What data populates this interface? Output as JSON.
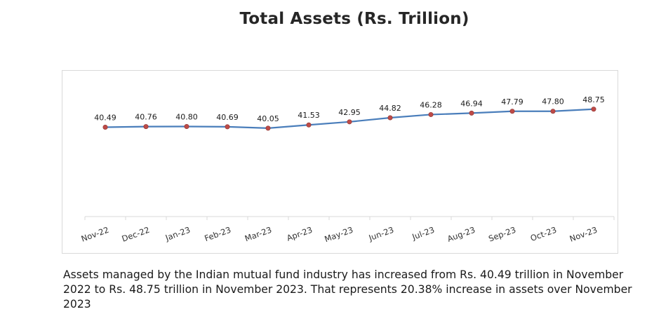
{
  "title": "Total Assets (Rs. Trillion)",
  "caption": "Assets managed by the Indian mutual fund industry has increased from Rs. 40.49 trillion in November 2022 to Rs. 48.75 trillion in November 2023. That represents 20.38% increase in assets over November 2023",
  "colors": {
    "line": "#4a7ebb",
    "marker": "#be4b48",
    "axis": "#d9d9d9"
  },
  "chart_data": {
    "type": "line",
    "title": "Total Assets (Rs. Trillion)",
    "categories": [
      "Nov-22",
      "Dec-22",
      "Jan-23",
      "Feb-23",
      "Mar-23",
      "Apr-23",
      "May-23",
      "Jun-23",
      "Jul-23",
      "Aug-23",
      "Sep-23",
      "Oct-23",
      "Nov-23"
    ],
    "series": [
      {
        "values": [
          40.49,
          40.76,
          40.8,
          40.69,
          40.05,
          41.53,
          42.95,
          44.82,
          46.28,
          46.94,
          47.79,
          47.8,
          48.75
        ],
        "labels": [
          "40.49",
          "40.76",
          "40.80",
          "40.69",
          "40.05",
          "41.53",
          "42.95",
          "44.82",
          "46.28",
          "46.94",
          "47.79",
          "47.80",
          "48.75"
        ]
      }
    ],
    "data_labels": true,
    "grid": false,
    "legend": "none"
  }
}
